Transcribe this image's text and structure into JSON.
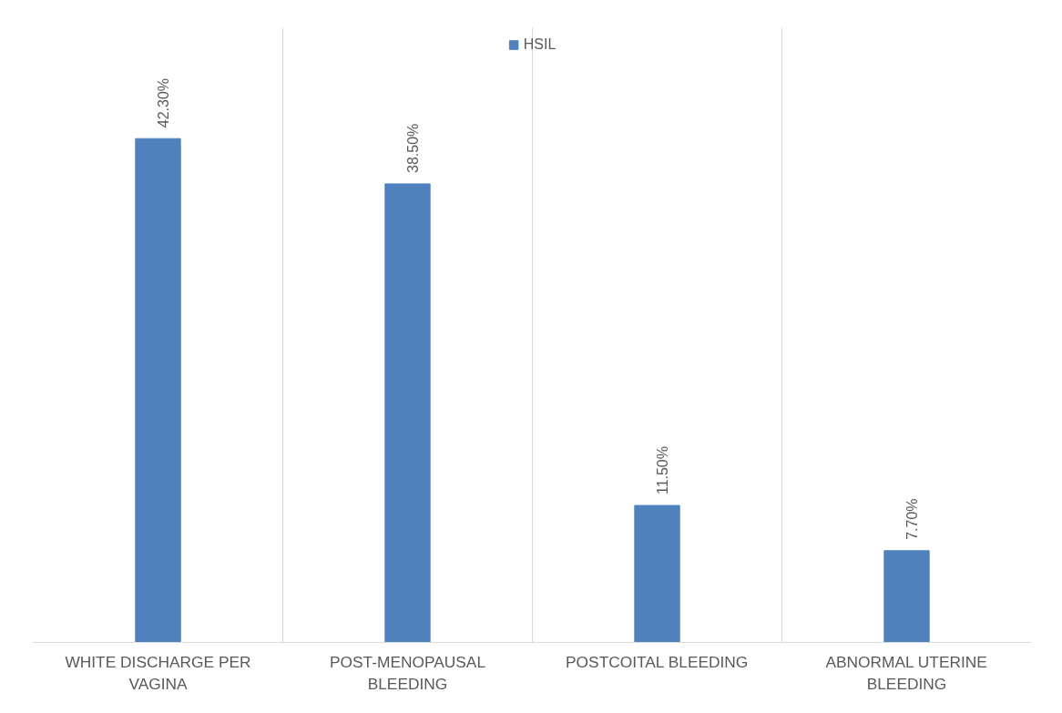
{
  "chart_data": {
    "type": "bar",
    "categories": [
      "WHITE DISCHARGE PER VAGINA",
      "POST-MENOPAUSAL BLEEDING",
      "POSTCOITAL BLEEDING",
      "ABNORMAL UTERINE BLEEDING"
    ],
    "series": [
      {
        "name": "HSIL",
        "color": "#4f81bd",
        "values": [
          42.3,
          38.5,
          11.5,
          7.7
        ],
        "value_labels": [
          "42.30%",
          "38.50%",
          "11.50%",
          "7.70%"
        ]
      }
    ],
    "tick_labels": "x",
    "grid": "x",
    "legend": "top"
  }
}
